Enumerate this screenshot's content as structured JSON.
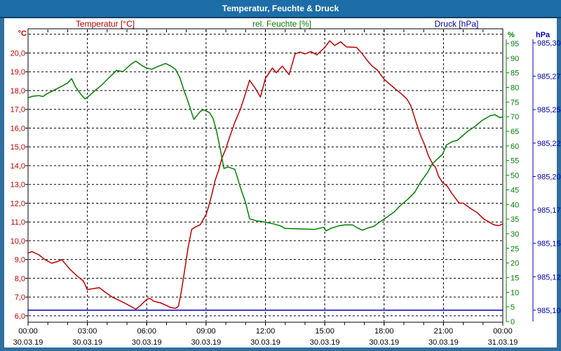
{
  "window": {
    "title": "Temperatur, Feuchte & Druck"
  },
  "legend": {
    "temperature": "Temperatur [°C]",
    "humidity": "rel. Feuchte [%]",
    "pressure": "Druck [hPa]"
  },
  "colors": {
    "titlebar": "#1c6da8",
    "titlebar_edge": "#0e4066",
    "window_border": "#306f9f",
    "temperature": "#c00000",
    "humidity": "#008000",
    "pressure": "#0000bb",
    "grid": "#000000",
    "plot_background": "#ffffff",
    "x_label": "#000000"
  },
  "chart_data": {
    "type": "line",
    "title": "Temperatur, Feuchte & Druck",
    "grid": true,
    "legend_position": "top",
    "x_axis": {
      "unit": "time",
      "range": [
        0,
        24
      ],
      "minor_tick_hours": 1,
      "grid_hours": [
        3,
        6,
        9,
        12,
        15,
        18,
        21
      ],
      "major_ticks": [
        {
          "h": 0,
          "time": "00:00",
          "date": "30.03.19"
        },
        {
          "h": 3,
          "time": "03:00",
          "date": "30.03.19"
        },
        {
          "h": 6,
          "time": "06:00",
          "date": "30.03.19"
        },
        {
          "h": 9,
          "time": "09:00",
          "date": "30.03.19"
        },
        {
          "h": 12,
          "time": "12:00",
          "date": "30.03.19"
        },
        {
          "h": 15,
          "time": "15:00",
          "date": "30.03.19"
        },
        {
          "h": 18,
          "time": "18:00",
          "date": "30.03.19"
        },
        {
          "h": 21,
          "time": "21:00",
          "date": "30.03.19"
        },
        {
          "h": 24,
          "time": "00:00",
          "date": "31.03.19"
        }
      ]
    },
    "y_axes": [
      {
        "id": "temperature",
        "unit": "°C",
        "side": "left",
        "color": "#c00000",
        "range_top": 21.29,
        "range_bottom": 5.66,
        "grid_values": [
          6,
          7,
          8,
          9,
          10,
          11,
          12,
          13,
          14,
          15,
          16,
          17,
          18,
          19,
          20,
          21
        ],
        "ticks": [
          {
            "v": 6,
            "label": "6,0"
          },
          {
            "v": 7,
            "label": "7,0"
          },
          {
            "v": 8,
            "label": "8,0"
          },
          {
            "v": 9,
            "label": "9,0"
          },
          {
            "v": 10,
            "label": "10,0"
          },
          {
            "v": 11,
            "label": "11,0"
          },
          {
            "v": 12,
            "label": "12,0"
          },
          {
            "v": 13,
            "label": "13,0"
          },
          {
            "v": 14,
            "label": "14,0"
          },
          {
            "v": 15,
            "label": "15,0"
          },
          {
            "v": 16,
            "label": "16,0"
          },
          {
            "v": 17,
            "label": "17,0"
          },
          {
            "v": 18,
            "label": "18,0"
          },
          {
            "v": 19,
            "label": "19,0"
          },
          {
            "v": 20,
            "label": "20,0"
          }
        ]
      },
      {
        "id": "humidity",
        "unit": "%",
        "side": "right",
        "color": "#008000",
        "axis_x": 722,
        "range_top": 100.04,
        "range_bottom": -0.24,
        "ticks": [
          {
            "v": 0,
            "label": "0"
          },
          {
            "v": 5,
            "label": "5"
          },
          {
            "v": 10,
            "label": "10"
          },
          {
            "v": 15,
            "label": "15"
          },
          {
            "v": 20,
            "label": "20"
          },
          {
            "v": 25,
            "label": "25"
          },
          {
            "v": 30,
            "label": "30"
          },
          {
            "v": 35,
            "label": "35"
          },
          {
            "v": 40,
            "label": "40"
          },
          {
            "v": 45,
            "label": "45"
          },
          {
            "v": 50,
            "label": "50"
          },
          {
            "v": 55,
            "label": "55"
          },
          {
            "v": 60,
            "label": "60"
          },
          {
            "v": 65,
            "label": "65"
          },
          {
            "v": 70,
            "label": "70"
          },
          {
            "v": 75,
            "label": "75"
          },
          {
            "v": 80,
            "label": "80"
          },
          {
            "v": 85,
            "label": "85"
          },
          {
            "v": 90,
            "label": "90"
          },
          {
            "v": 95,
            "label": "95"
          }
        ]
      },
      {
        "id": "pressure",
        "unit": "hPa",
        "side": "right",
        "color": "#0000bb",
        "axis_x": 760,
        "range_top": 985.3105,
        "range_bottom": 985.091,
        "ticks": [
          {
            "v": 985.1,
            "label": "985,10"
          },
          {
            "v": 985.125,
            "label": "985,12"
          },
          {
            "v": 985.15,
            "label": "985,15"
          },
          {
            "v": 985.175,
            "label": "985,17"
          },
          {
            "v": 985.2,
            "label": "985,20"
          },
          {
            "v": 985.225,
            "label": "985,22"
          },
          {
            "v": 985.25,
            "label": "985,25"
          },
          {
            "v": 985.275,
            "label": "985,27"
          },
          {
            "v": 985.3,
            "label": "985,30"
          }
        ]
      }
    ],
    "series": [
      {
        "name": "Temperatur",
        "axis": "temperature",
        "color": "#c00000",
        "points": [
          [
            0,
            9.35
          ],
          [
            0.2,
            9.42
          ],
          [
            0.55,
            9.25
          ],
          [
            0.85,
            9.0
          ],
          [
            1.2,
            8.8
          ],
          [
            1.5,
            8.9
          ],
          [
            1.7,
            9.0
          ],
          [
            2.1,
            8.5
          ],
          [
            2.5,
            8.1
          ],
          [
            2.8,
            7.85
          ],
          [
            3.0,
            7.4
          ],
          [
            3.3,
            7.45
          ],
          [
            3.6,
            7.5
          ],
          [
            3.85,
            7.3
          ],
          [
            4.25,
            7.0
          ],
          [
            4.85,
            6.7
          ],
          [
            5.3,
            6.44
          ],
          [
            5.45,
            6.35
          ],
          [
            5.7,
            6.57
          ],
          [
            6.0,
            6.88
          ],
          [
            6.15,
            6.94
          ],
          [
            6.35,
            6.78
          ],
          [
            6.7,
            6.69
          ],
          [
            7.0,
            6.55
          ],
          [
            7.2,
            6.45
          ],
          [
            7.45,
            6.4
          ],
          [
            7.6,
            6.5
          ],
          [
            7.75,
            7.3
          ],
          [
            7.9,
            8.3
          ],
          [
            8.1,
            9.7
          ],
          [
            8.27,
            10.6
          ],
          [
            8.45,
            10.73
          ],
          [
            8.7,
            10.85
          ],
          [
            9.0,
            11.4
          ],
          [
            9.15,
            11.9
          ],
          [
            9.3,
            12.5
          ],
          [
            9.45,
            13.2
          ],
          [
            9.65,
            13.8
          ],
          [
            9.8,
            14.4
          ],
          [
            10.0,
            14.9
          ],
          [
            10.15,
            15.4
          ],
          [
            10.45,
            16.3
          ],
          [
            10.75,
            17.05
          ],
          [
            10.95,
            17.7
          ],
          [
            11.2,
            18.55
          ],
          [
            11.5,
            18.1
          ],
          [
            11.75,
            17.65
          ],
          [
            12.0,
            18.65
          ],
          [
            12.35,
            19.2
          ],
          [
            12.55,
            18.95
          ],
          [
            12.85,
            19.3
          ],
          [
            13.2,
            18.85
          ],
          [
            13.5,
            19.95
          ],
          [
            13.75,
            20.05
          ],
          [
            14.0,
            19.95
          ],
          [
            14.3,
            20.08
          ],
          [
            14.6,
            19.9
          ],
          [
            15.0,
            20.3
          ],
          [
            15.25,
            20.65
          ],
          [
            15.5,
            20.4
          ],
          [
            15.8,
            20.6
          ],
          [
            16.1,
            20.32
          ],
          [
            16.6,
            20.3
          ],
          [
            16.9,
            19.95
          ],
          [
            17.15,
            19.6
          ],
          [
            17.4,
            19.3
          ],
          [
            17.65,
            19.1
          ],
          [
            18.0,
            18.6
          ],
          [
            18.6,
            18.05
          ],
          [
            18.9,
            17.8
          ],
          [
            19.15,
            17.55
          ],
          [
            19.35,
            17.2
          ],
          [
            19.5,
            16.7
          ],
          [
            19.65,
            16.2
          ],
          [
            19.85,
            15.6
          ],
          [
            20.05,
            15.1
          ],
          [
            20.25,
            14.5
          ],
          [
            20.45,
            14.1
          ],
          [
            20.6,
            13.9
          ],
          [
            20.75,
            13.45
          ],
          [
            20.95,
            13.1
          ],
          [
            21.2,
            12.9
          ],
          [
            21.4,
            12.55
          ],
          [
            21.8,
            12.0
          ],
          [
            22.0,
            12.0
          ],
          [
            22.2,
            11.85
          ],
          [
            22.4,
            11.7
          ],
          [
            22.7,
            11.5
          ],
          [
            23.05,
            11.15
          ],
          [
            23.3,
            11.0
          ],
          [
            23.55,
            10.85
          ],
          [
            23.8,
            10.8
          ],
          [
            24,
            10.9
          ]
        ]
      },
      {
        "name": "rel. Feuchte",
        "axis": "humidity",
        "color": "#008000",
        "points": [
          [
            0,
            76.5
          ],
          [
            0.25,
            77.0
          ],
          [
            0.55,
            77.2
          ],
          [
            0.75,
            76.9
          ],
          [
            0.95,
            77.8
          ],
          [
            1.3,
            79.0
          ],
          [
            1.65,
            80.2
          ],
          [
            2.0,
            81.5
          ],
          [
            2.2,
            83.0
          ],
          [
            2.4,
            80.2
          ],
          [
            2.7,
            77.4
          ],
          [
            2.87,
            76.1
          ],
          [
            3.0,
            76.6
          ],
          [
            3.4,
            79.0
          ],
          [
            3.75,
            81.0
          ],
          [
            4.1,
            83.4
          ],
          [
            4.47,
            85.8
          ],
          [
            4.8,
            85.4
          ],
          [
            5.18,
            87.8
          ],
          [
            5.45,
            89.0
          ],
          [
            5.77,
            87.4
          ],
          [
            6.0,
            86.6
          ],
          [
            6.25,
            86.2
          ],
          [
            6.5,
            87.0
          ],
          [
            6.95,
            88.2
          ],
          [
            7.2,
            87.4
          ],
          [
            7.45,
            86.2
          ],
          [
            7.67,
            83.4
          ],
          [
            7.9,
            78.6
          ],
          [
            8.02,
            76.5
          ],
          [
            8.38,
            69.1
          ],
          [
            8.72,
            71.9
          ],
          [
            8.9,
            72.3
          ],
          [
            9.17,
            71.4
          ],
          [
            9.35,
            69.5
          ],
          [
            9.53,
            65.1
          ],
          [
            9.7,
            59.5
          ],
          [
            9.9,
            52.3
          ],
          [
            10.1,
            52.8
          ],
          [
            10.25,
            52.5
          ],
          [
            10.45,
            52.0
          ],
          [
            10.55,
            50.0
          ],
          [
            10.67,
            47.2
          ],
          [
            10.8,
            44.4
          ],
          [
            11.0,
            40.6
          ],
          [
            11.2,
            35.1
          ],
          [
            11.55,
            34.4
          ],
          [
            11.8,
            34.2
          ],
          [
            12.0,
            33.9
          ],
          [
            12.4,
            33.4
          ],
          [
            12.75,
            32.7
          ],
          [
            13.0,
            31.8
          ],
          [
            13.5,
            31.7
          ],
          [
            14.5,
            31.5
          ],
          [
            14.95,
            32.2
          ],
          [
            15.07,
            31.0
          ],
          [
            15.3,
            31.8
          ],
          [
            15.7,
            32.7
          ],
          [
            16.0,
            33.0
          ],
          [
            16.4,
            33.0
          ],
          [
            16.65,
            32.0
          ],
          [
            16.9,
            31.2
          ],
          [
            17.2,
            32.0
          ],
          [
            17.5,
            32.6
          ],
          [
            17.75,
            33.9
          ],
          [
            18.0,
            35.0
          ],
          [
            18.5,
            37.4
          ],
          [
            18.85,
            39.8
          ],
          [
            19.2,
            41.8
          ],
          [
            19.55,
            44.2
          ],
          [
            19.85,
            47.7
          ],
          [
            20.2,
            51.0
          ],
          [
            20.45,
            54.0
          ],
          [
            20.75,
            55.9
          ],
          [
            20.95,
            57.1
          ],
          [
            21.15,
            60.3
          ],
          [
            21.45,
            61.5
          ],
          [
            21.7,
            61.9
          ],
          [
            21.9,
            63.1
          ],
          [
            22.25,
            65.1
          ],
          [
            22.6,
            66.7
          ],
          [
            22.95,
            68.7
          ],
          [
            23.35,
            70.3
          ],
          [
            23.6,
            70.7
          ],
          [
            23.85,
            69.7
          ],
          [
            24,
            69.9
          ]
        ]
      },
      {
        "name": "Druck",
        "axis": "pressure",
        "color": "#0000bb",
        "points": [
          [
            0,
            985.1
          ],
          [
            24,
            985.1
          ]
        ]
      }
    ]
  }
}
